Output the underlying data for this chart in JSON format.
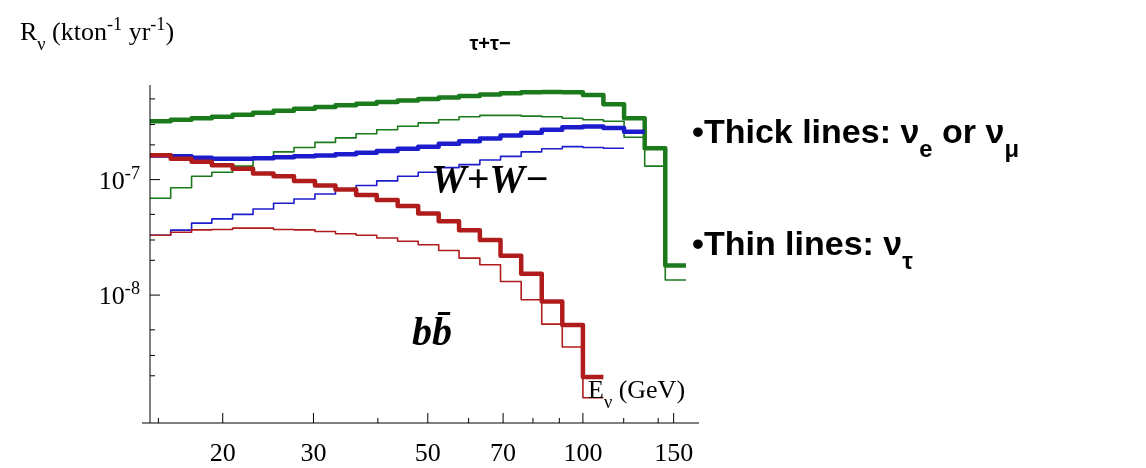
{
  "chart_data": {
    "type": "step",
    "log": "xy",
    "ylabel": "R$_{ν}$ (kton$^{-1}$ yr$^{-1}$)",
    "xlabel": "E$_{ν}$ (GeV)",
    "x": [
      14.45,
      15.85,
      17.4,
      19.05,
      20.9,
      22.9,
      25.1,
      27.5,
      30.2,
      33.1,
      36.3,
      39.8,
      43.7,
      47.9,
      52.5,
      57.5,
      63.1,
      69.2,
      75.9,
      83.2,
      91.2,
      100,
      109.6,
      120.2,
      131.8,
      144.5,
      158.5
    ],
    "xlim": [
      14.45,
      168
    ],
    "xticks": [
      {
        "value": 15,
        "label": null
      },
      20,
      30,
      {
        "value": 40,
        "label": null
      },
      50,
      {
        "value": 60,
        "label": null
      },
      70,
      {
        "value": 80,
        "label": null
      },
      {
        "value": 90,
        "label": null
      },
      100,
      {
        "value": 120,
        "label": null
      },
      {
        "value": 140,
        "label": null
      },
      150
    ],
    "ylim": [
      7.8e-10,
      6.6e-07
    ],
    "yticks": [
      {
        "value": 2e-09,
        "label": null
      },
      {
        "value": 3e-09,
        "label": null
      },
      {
        "value": 5e-09,
        "label": null
      },
      {
        "value": 1e-08,
        "label": "10$^{-8}$"
      },
      {
        "value": 2e-08,
        "label": null
      },
      {
        "value": 3e-08,
        "label": null
      },
      {
        "value": 5e-08,
        "label": null
      },
      {
        "value": 1e-07,
        "label": "10$^{-7}$"
      },
      {
        "value": 2e-07,
        "label": null
      },
      {
        "value": 3e-07,
        "label": null
      },
      {
        "value": 5e-07,
        "label": null
      }
    ],
    "series": [
      {
        "color": "#1b7a1b",
        "values": [
          3.2e-07,
          3.3e-07,
          3.4e-07,
          3.5e-07,
          3.65e-07,
          3.8e-07,
          3.95e-07,
          4.1e-07,
          4.25e-07,
          4.4e-07,
          4.55e-07,
          4.7e-07,
          4.85e-07,
          5e-07,
          5.15e-07,
          5.3e-07,
          5.45e-07,
          5.6e-07,
          5.7e-07,
          5.75e-07,
          5.7e-07,
          5.4e-07,
          4.5e-07,
          3.4e-07,
          1.87e-07,
          1.8e-08,
          1.8e-08
        ]
      },
      {
        "color": "#1b7a1b",
        "values": [
          6.9e-08,
          8.5e-08,
          1.07e-07,
          1.16e-07,
          1.31e-07,
          1.52e-07,
          1.74e-07,
          1.9e-07,
          2.1e-07,
          2.3e-07,
          2.5e-07,
          2.7e-07,
          2.9e-07,
          3.1e-07,
          3.3e-07,
          3.5e-07,
          3.6e-07,
          3.6e-07,
          3.55e-07,
          3.5e-07,
          3.4e-07,
          3.3e-07,
          3.2e-07,
          2.33e-07,
          1.31e-07,
          1.35e-08,
          1.35e-08
        ]
      },
      {
        "color": "#1c1ccc",
        "values": [
          1.62e-07,
          1.59e-07,
          1.55e-07,
          1.52e-07,
          1.52e-07,
          1.53e-07,
          1.56e-07,
          1.59e-07,
          1.62e-07,
          1.66e-07,
          1.71e-07,
          1.77e-07,
          1.85e-07,
          1.93e-07,
          2.04e-07,
          2.15e-07,
          2.27e-07,
          2.41e-07,
          2.55e-07,
          2.71e-07,
          2.84e-07,
          2.89e-07,
          2.8e-07,
          2.6e-07,
          2.6e-07,
          null,
          null
        ]
      },
      {
        "color": "#1c1ccc",
        "values": [
          3.3e-08,
          3.65e-08,
          4.2e-08,
          4.57e-08,
          5e-08,
          5.56e-08,
          6.25e-08,
          6.8e-08,
          7.5e-08,
          8.2e-08,
          8.9e-08,
          9.75e-08,
          1.07e-07,
          1.16e-07,
          1.27e-07,
          1.35e-07,
          1.48e-07,
          1.59e-07,
          1.74e-07,
          1.85e-07,
          1.93e-07,
          1.9e-07,
          1.87e-07,
          1.87e-07,
          null,
          null,
          null
        ]
      },
      {
        "color": "#b01c1c",
        "values": [
          1.63e-07,
          1.52e-07,
          1.43e-07,
          1.33e-07,
          1.24e-07,
          1.13e-07,
          1.07e-07,
          9.75e-08,
          8.9e-08,
          8.2e-08,
          7.35e-08,
          6.65e-08,
          5.9e-08,
          5.1e-08,
          4.37e-08,
          3.65e-08,
          3e-08,
          2.19e-08,
          1.53e-08,
          8.8e-09,
          5.5e-09,
          1.95e-09,
          1.95e-09,
          null,
          null,
          null,
          null
        ]
      },
      {
        "color": "#b01c1c",
        "values": [
          3.3e-08,
          3.5e-08,
          3.67e-08,
          3.7e-08,
          3.8e-08,
          3.8e-08,
          3.7e-08,
          3.67e-08,
          3.55e-08,
          3.4e-08,
          3.3e-08,
          3.12e-08,
          2.93e-08,
          2.73e-08,
          2.43e-08,
          2.09e-08,
          1.83e-08,
          1.31e-08,
          9.1e-09,
          5.6e-09,
          3.55e-09,
          1.29e-09,
          1.29e-09,
          null,
          null,
          null,
          null
        ]
      }
    ],
    "annotations": [
      "τ+τ−",
      "W+W−",
      "bb̄",
      "•Thick lines: ν$_{e}$ or ν$_{μ}$",
      "•Thin lines: ν$_{τ}$"
    ]
  }
}
